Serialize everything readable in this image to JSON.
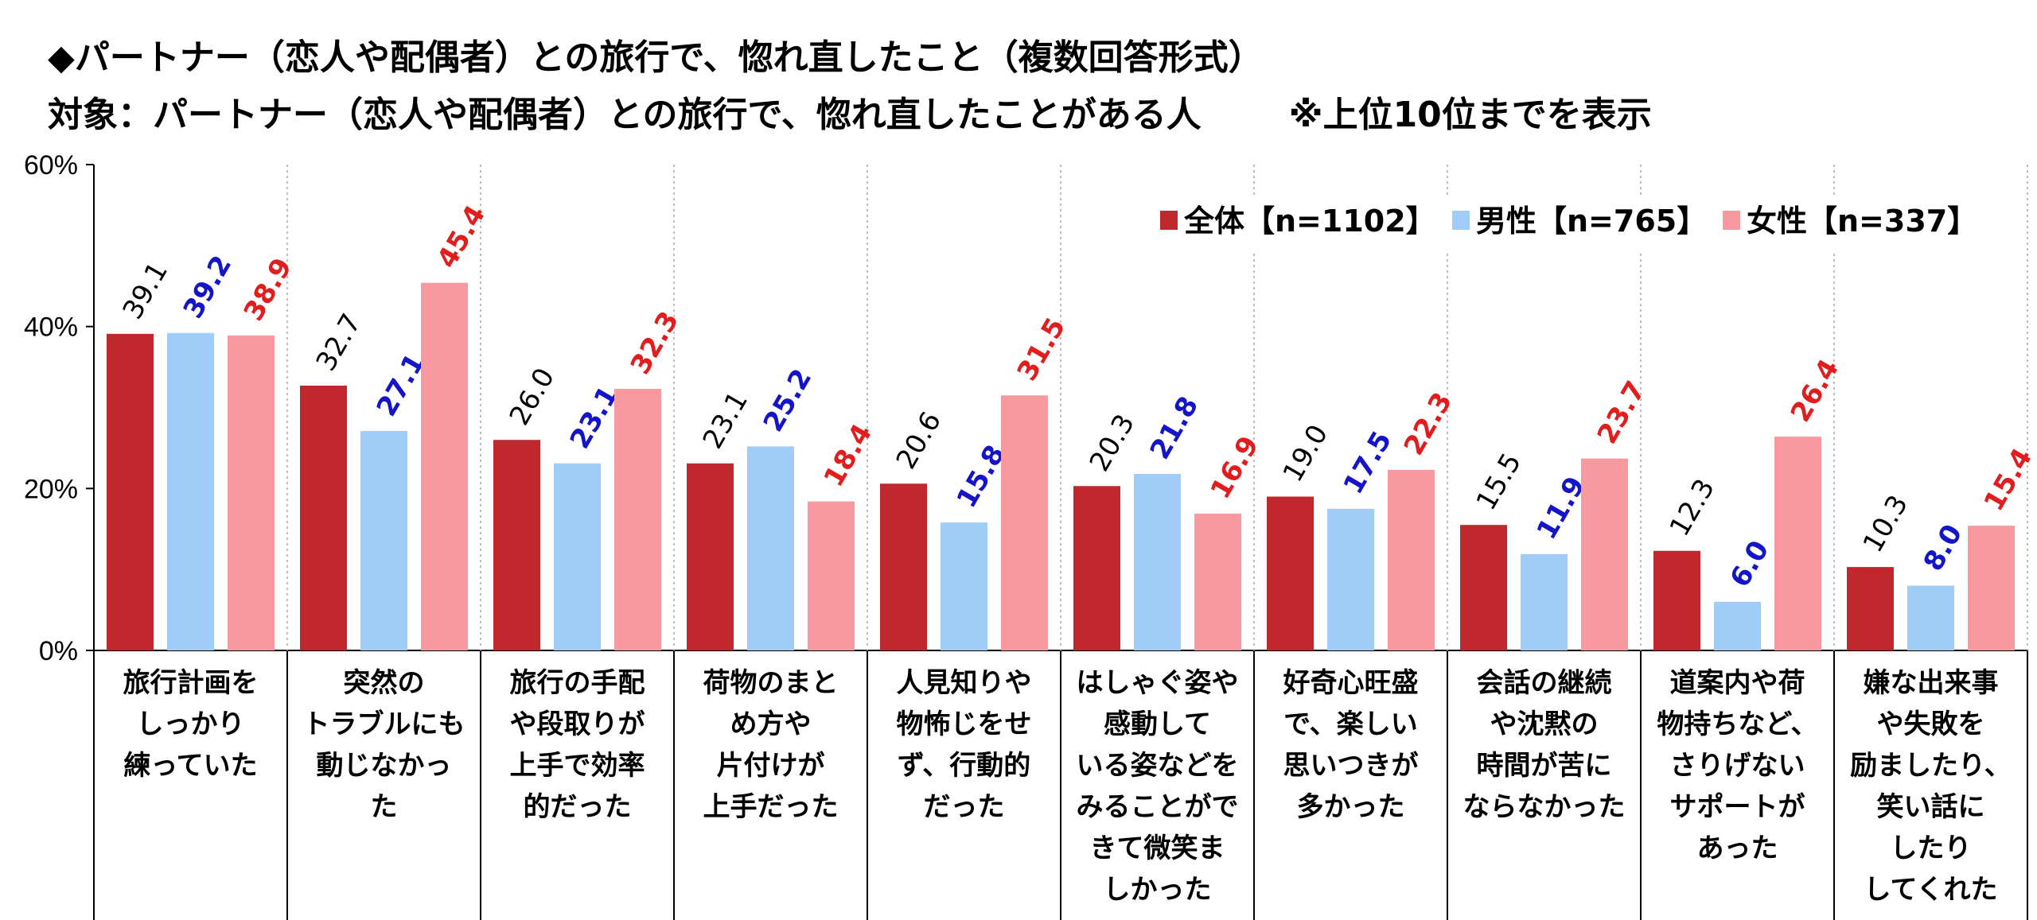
{
  "title_line1": "◆パートナー（恋人や配偶者）との旅行で、惚れ直したこと（複数回答形式）",
  "title_line2": "対象：パートナー（恋人や配偶者）との旅行で、惚れ直したことがある人",
  "title_note": "※上位10位までを表示",
  "colors": {
    "all": "#c0282e",
    "male": "#9fcdf7",
    "female": "#f7999e",
    "label_all": "#000000",
    "label_male": "#1414c8",
    "label_female": "#e21d1d"
  },
  "chart_data": {
    "type": "bar",
    "ylim": [
      0,
      60
    ],
    "yticks": [
      "0%",
      "20%",
      "40%",
      "60%"
    ],
    "ytick_values": [
      0,
      20,
      40,
      60
    ],
    "grid": "vertical dotted category separators",
    "legend_position": "top-right",
    "categories": [
      [
        "旅行計画を",
        "しっかり",
        "練っていた"
      ],
      [
        "突然の",
        "トラブルにも",
        "動じなかっ",
        "た"
      ],
      [
        "旅行の手配",
        "や段取りが",
        "上手で効率",
        "的だった"
      ],
      [
        "荷物のまと",
        "め方や",
        "片付けが",
        "上手だった"
      ],
      [
        "人見知りや",
        "物怖じをせ",
        "ず、行動的",
        "だった"
      ],
      [
        "はしゃぐ姿や",
        "感動して",
        "いる姿などを",
        "みることがで",
        "きて微笑ま",
        "しかった"
      ],
      [
        "好奇心旺盛",
        "で、楽しい",
        "思いつきが",
        "多かった"
      ],
      [
        "会話の継続",
        "や沈黙の",
        "時間が苦に",
        "ならなかった"
      ],
      [
        "道案内や荷",
        "物持ちなど、",
        "さりげない",
        "サポートが",
        "あった"
      ],
      [
        "嫌な出来事",
        "や失敗を",
        "励ましたり、",
        "笑い話に",
        "したり",
        "してくれた"
      ]
    ],
    "series": [
      {
        "name": "全体【n=1102】",
        "values": [
          39.1,
          32.7,
          26.0,
          23.1,
          20.6,
          20.3,
          19.0,
          15.5,
          12.3,
          10.3
        ]
      },
      {
        "name": "男性【n=765】",
        "values": [
          39.2,
          27.1,
          23.1,
          25.2,
          15.8,
          21.8,
          17.5,
          11.9,
          6.0,
          8.0
        ]
      },
      {
        "name": "女性【n=337】",
        "values": [
          38.9,
          45.4,
          32.3,
          18.4,
          31.5,
          16.9,
          22.3,
          23.7,
          26.4,
          15.4
        ]
      }
    ]
  }
}
